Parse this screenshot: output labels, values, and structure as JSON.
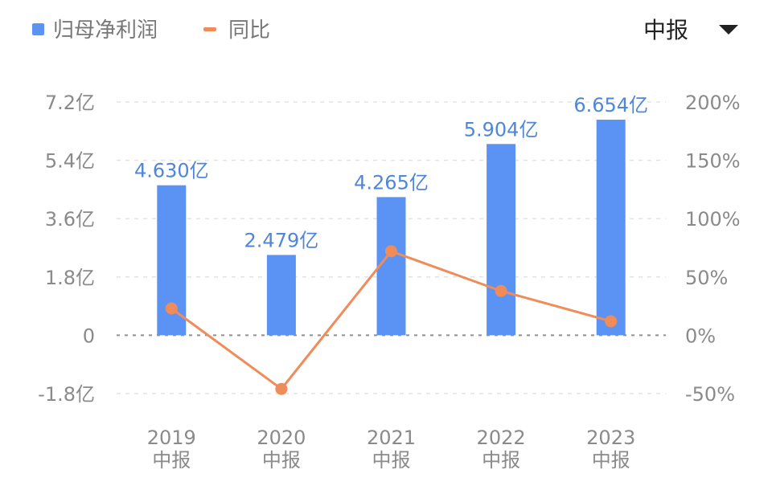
{
  "legend": [
    {
      "label": "归母净利润",
      "color": "#5b93f5",
      "marker": "square"
    },
    {
      "label": "同比",
      "color": "#f08c5a",
      "marker": "dash"
    }
  ],
  "period_selector": {
    "label": "中报",
    "icon": "caret-down-icon"
  },
  "chart_data": {
    "type": "bar",
    "categories": [
      "2019\n中报",
      "2020\n中报",
      "2021\n中报",
      "2022\n中报",
      "2023\n中报"
    ],
    "series": [
      {
        "name": "归母净利润",
        "type": "bar",
        "axis": "left",
        "values": [
          4.63,
          2.479,
          4.265,
          5.904,
          6.654
        ],
        "labels": [
          "4.630亿",
          "2.479亿",
          "4.265亿",
          "5.904亿",
          "6.654亿"
        ],
        "color": "#5b93f5"
      },
      {
        "name": "同比",
        "type": "line",
        "axis": "right",
        "values": [
          23,
          -46,
          72,
          38,
          12
        ],
        "color": "#f08c5a"
      }
    ],
    "y_left": {
      "ylim": [
        -1.8,
        7.2
      ],
      "ticks": [
        7.2,
        5.4,
        3.6,
        1.8,
        0,
        -1.8
      ],
      "tick_labels": [
        "7.2亿",
        "5.4亿",
        "3.6亿",
        "1.8亿",
        "0",
        "-1.8亿"
      ]
    },
    "y_right": {
      "ylim": [
        -50,
        200
      ],
      "ticks": [
        200,
        150,
        100,
        50,
        0,
        -50
      ],
      "tick_labels": [
        "200%",
        "150%",
        "100%",
        "50%",
        "0%",
        "-50%"
      ]
    },
    "grid": true,
    "legend_position": "top-left"
  }
}
